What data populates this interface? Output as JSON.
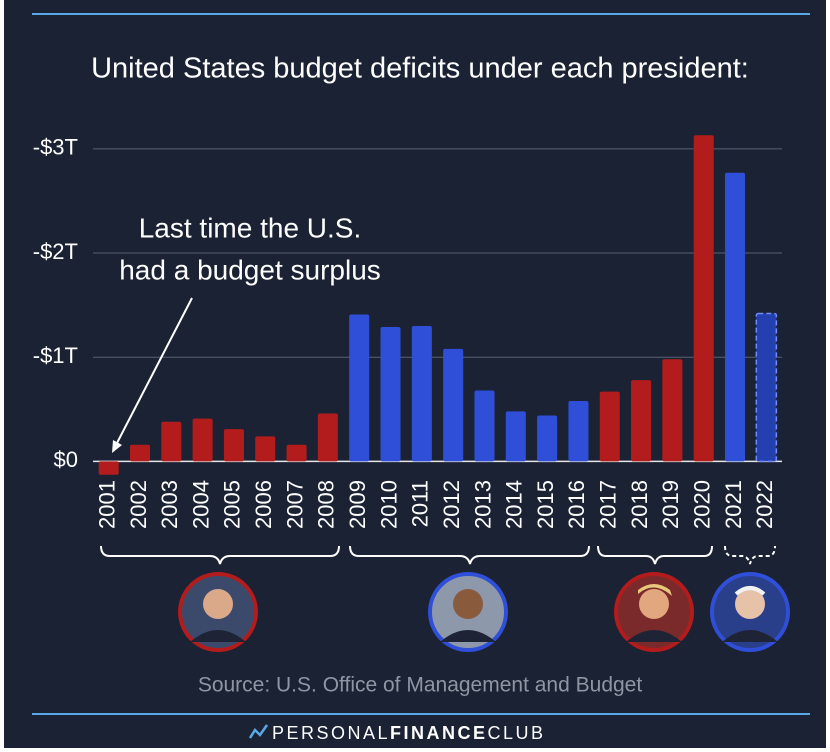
{
  "chart_data": {
    "type": "bar",
    "title": "United States budget deficits under each president:",
    "annotation": [
      "Last time the U.S.",
      "had a budget surplus"
    ],
    "source": "Source: U.S. Office of Management and Budget",
    "footer": [
      "PERSONAL",
      "FINANCE",
      "CLUB"
    ],
    "categories": [
      "2001",
      "2002",
      "2003",
      "2004",
      "2005",
      "2006",
      "2007",
      "2008",
      "2009",
      "2010",
      "2011",
      "2012",
      "2013",
      "2014",
      "2015",
      "2016",
      "2017",
      "2018",
      "2019",
      "2020",
      "2021",
      "2022"
    ],
    "values": [
      0.128,
      -0.16,
      -0.38,
      -0.41,
      -0.31,
      -0.24,
      -0.16,
      -0.46,
      -1.41,
      -1.29,
      -1.3,
      -1.08,
      -0.68,
      -0.48,
      -0.44,
      -0.58,
      -0.67,
      -0.78,
      -0.98,
      -3.13,
      -2.77,
      -1.42
    ],
    "colors": [
      "#b31c1c",
      "#b31c1c",
      "#b31c1c",
      "#b31c1c",
      "#b31c1c",
      "#b31c1c",
      "#b31c1c",
      "#b31c1c",
      "#2f4fd8",
      "#2f4fd8",
      "#2f4fd8",
      "#2f4fd8",
      "#2f4fd8",
      "#2f4fd8",
      "#2f4fd8",
      "#2f4fd8",
      "#b31c1c",
      "#b31c1c",
      "#b31c1c",
      "#b31c1c",
      "#2f4fd8",
      "#2f4fd8"
    ],
    "dashed": [
      false,
      false,
      false,
      false,
      false,
      false,
      false,
      false,
      false,
      false,
      false,
      false,
      false,
      false,
      false,
      false,
      false,
      false,
      false,
      false,
      false,
      true
    ],
    "ylim": [
      0.15,
      -3.2
    ],
    "yticks": [
      {
        "value": 0,
        "label": "$0"
      },
      {
        "value": -1,
        "label": "-$1T"
      },
      {
        "value": -2,
        "label": "-$2T"
      },
      {
        "value": -3,
        "label": "-$3T"
      }
    ],
    "grid": true
  }
}
